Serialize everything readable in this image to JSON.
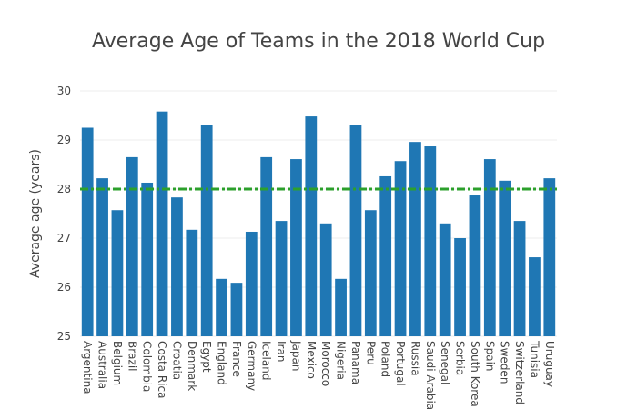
{
  "chart_data": {
    "type": "bar",
    "title": "Average Age of Teams in the 2018 World Cup",
    "ylabel": "Average age (years)",
    "xlabel": "",
    "ylim": [
      25,
      30
    ],
    "yticks": [
      "25",
      "26",
      "27",
      "28",
      "29",
      "30"
    ],
    "grid": true,
    "bar_color": "#1f77b4",
    "reference_line": {
      "value": 28.0,
      "style": "dash-dot",
      "color": "#2ca02c"
    },
    "categories": [
      "Argentina",
      "Australia",
      "Belgium",
      "Brazil",
      "Colombia",
      "Costa Rica",
      "Croatia",
      "Denmark",
      "Egypt",
      "England",
      "France",
      "Germany",
      "Iceland",
      "Iran",
      "Japan",
      "Mexico",
      "Morocco",
      "Nigeria",
      "Panama",
      "Peru",
      "Poland",
      "Portugal",
      "Russia",
      "Saudi Arabia",
      "Senegal",
      "Serbia",
      "South Korea",
      "Spain",
      "Sweden",
      "Switzerland",
      "Tunisia",
      "Uruguay"
    ],
    "values": [
      29.25,
      28.22,
      27.57,
      28.65,
      28.13,
      29.58,
      27.83,
      27.17,
      29.3,
      26.17,
      26.09,
      27.13,
      28.65,
      27.35,
      28.61,
      29.48,
      27.3,
      26.17,
      29.3,
      27.57,
      28.26,
      28.57,
      28.96,
      28.87,
      27.3,
      27.0,
      27.87,
      28.61,
      28.17,
      27.35,
      26.61,
      28.22
    ]
  }
}
